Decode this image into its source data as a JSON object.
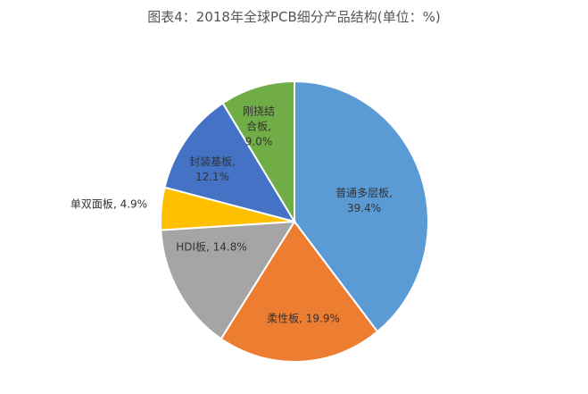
{
  "chart_data": {
    "type": "pie",
    "title": "图表4：2018年全球PCB细分产品结构(单位：%)",
    "slices": [
      {
        "label": "普通多层板",
        "value": 39.4,
        "display": "39.4%",
        "color": "#5b9bd5"
      },
      {
        "label": "柔性板",
        "value": 19.9,
        "display": "19.9%",
        "color": "#ed7d31"
      },
      {
        "label": "HDI板",
        "value": 14.8,
        "display": "14.8%",
        "color": "#a5a5a5"
      },
      {
        "label": "单双面板",
        "value": 4.9,
        "display": "4.9%",
        "color": "#ffc000"
      },
      {
        "label": "封装基板",
        "value": 12.1,
        "display": "12.1%",
        "color": "#4472c4"
      },
      {
        "label": "刚挠结合板",
        "value": 9.0,
        "display": "9.0%",
        "color": "#70ad47"
      }
    ],
    "start": "top",
    "direction": "clockwise",
    "legend": "none"
  }
}
